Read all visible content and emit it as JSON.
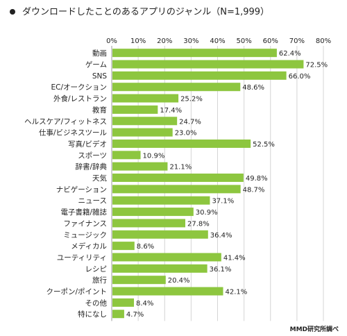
{
  "chart_data": {
    "type": "bar",
    "orientation": "horizontal",
    "title": "ダウンロードしたことのあるアプリのジャンル（N=1,999）",
    "source": "MMD研究所調べ",
    "xlim": [
      0,
      80
    ],
    "xticks": [
      "0%",
      "10%",
      "20%",
      "30%",
      "40%",
      "50%",
      "60%",
      "70%",
      "80%"
    ],
    "grid": true,
    "bar_color": "#8dc63f",
    "categories": [
      "動画",
      "ゲーム",
      "SNS",
      "EC/オークション",
      "外食/レストラン",
      "教育",
      "ヘルスケア/フィットネス",
      "仕事/ビジネスツール",
      "写真/ビデオ",
      "スポーツ",
      "辞書/辞典",
      "天気",
      "ナビゲーション",
      "ニュース",
      "電子書籍/雑誌",
      "ファイナンス",
      "ミュージック",
      "メディカル",
      "ユーティリティ",
      "レシピ",
      "旅行",
      "クーポン/ポイント",
      "その他",
      "特になし"
    ],
    "values": [
      62.4,
      72.5,
      66.0,
      48.6,
      25.2,
      17.4,
      24.7,
      23.0,
      52.5,
      10.9,
      21.1,
      49.8,
      48.7,
      37.1,
      30.9,
      27.8,
      36.4,
      8.6,
      41.4,
      36.1,
      20.4,
      42.1,
      8.4,
      4.7
    ],
    "value_labels": [
      "62.4%",
      "72.5%",
      "66.0%",
      "48.6%",
      "25.2%",
      "17.4%",
      "24.7%",
      "23.0%",
      "52.5%",
      "10.9%",
      "21.1%",
      "49.8%",
      "48.7%",
      "37.1%",
      "30.9%",
      "27.8%",
      "36.4%",
      "8.6%",
      "41.4%",
      "36.1%",
      "20.4%",
      "42.1%",
      "8.4%",
      "4.7%"
    ]
  }
}
